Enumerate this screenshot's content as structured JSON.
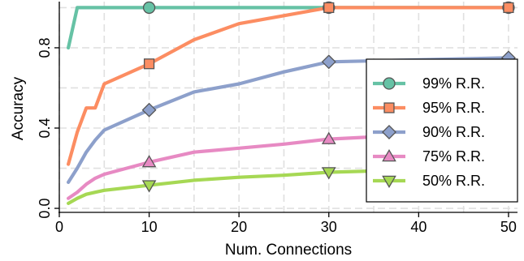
{
  "chart_data": {
    "type": "line",
    "xlabel": "Num. Connections",
    "ylabel": "Accuracy",
    "xlim": [
      0,
      51
    ],
    "ylim": [
      -0.02,
      1.03
    ],
    "xticks": [
      0,
      10,
      20,
      30,
      40,
      50
    ],
    "yticks": [
      0.0,
      0.4,
      0.8
    ],
    "ytick_labels": [
      "0.0",
      "0.4",
      "0.8"
    ],
    "grid": true,
    "legend_position": "right",
    "series": [
      {
        "name": "99% R.R.",
        "color": "#66c2a5",
        "marker": "circle",
        "x": [
          1,
          2,
          3,
          4,
          5,
          10,
          15,
          20,
          25,
          30,
          50
        ],
        "y": [
          0.8,
          1.0,
          1.0,
          1.0,
          1.0,
          1.0,
          1.0,
          1.0,
          1.0,
          1.0,
          1.0
        ],
        "marker_x": [
          10,
          30,
          50
        ]
      },
      {
        "name": "95% R.R.",
        "color": "#fc8d62",
        "marker": "square",
        "x": [
          1,
          2,
          3,
          4,
          5,
          10,
          15,
          20,
          25,
          30,
          50
        ],
        "y": [
          0.22,
          0.38,
          0.5,
          0.5,
          0.62,
          0.72,
          0.84,
          0.92,
          0.96,
          1.0,
          1.0
        ],
        "marker_x": [
          10,
          30,
          50
        ]
      },
      {
        "name": "90% R.R.",
        "color": "#8da0cb",
        "marker": "diamond",
        "x": [
          1,
          2,
          3,
          4,
          5,
          10,
          15,
          20,
          25,
          30,
          50
        ],
        "y": [
          0.13,
          0.2,
          0.28,
          0.34,
          0.39,
          0.49,
          0.58,
          0.62,
          0.68,
          0.73,
          0.75
        ],
        "marker_x": [
          10,
          30,
          50
        ]
      },
      {
        "name": "75% R.R.",
        "color": "#e78ac3",
        "marker": "triangle-up",
        "x": [
          1,
          2,
          3,
          4,
          5,
          10,
          15,
          20,
          25,
          30,
          50
        ],
        "y": [
          0.05,
          0.08,
          0.12,
          0.15,
          0.17,
          0.23,
          0.28,
          0.3,
          0.32,
          0.345,
          0.39
        ],
        "marker_x": [
          10,
          30,
          50
        ]
      },
      {
        "name": "50% R.R.",
        "color": "#a6d854",
        "marker": "triangle-down",
        "x": [
          1,
          2,
          3,
          4,
          5,
          10,
          15,
          20,
          25,
          30,
          50
        ],
        "y": [
          0.025,
          0.05,
          0.07,
          0.08,
          0.09,
          0.115,
          0.14,
          0.155,
          0.165,
          0.18,
          0.205
        ],
        "marker_x": [
          10,
          30,
          50
        ]
      }
    ]
  }
}
